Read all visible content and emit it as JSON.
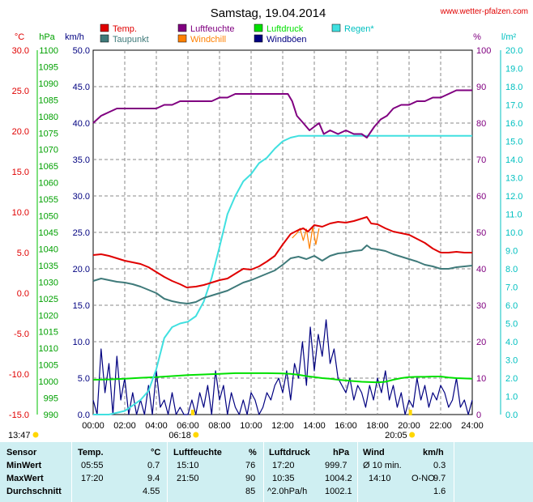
{
  "header": {
    "title": "Samstag, 19.04.2014",
    "site": "www.wetter-pfalzen.com"
  },
  "legend": [
    {
      "name": "Temp.",
      "color": "#e00000"
    },
    {
      "name": "Taupunkt",
      "color": "#3f7a7a"
    },
    {
      "name": "Luftfeuchte",
      "color": "#800080"
    },
    {
      "name": "Windchill",
      "color": "#ff8000"
    },
    {
      "name": "Luftdruck",
      "color": "#00e000"
    },
    {
      "name": "Windböen",
      "color": "#000080"
    },
    {
      "name": "Regen*",
      "color": "#40e0e0"
    }
  ],
  "axes": {
    "temp": {
      "unit": "°C",
      "color": "#e00000",
      "labels": [
        "30.0",
        "25.0",
        "20.0",
        "15.0",
        "10.0",
        "5.0",
        "0.0",
        "-5.0",
        "-10.0",
        "-15.0"
      ]
    },
    "pressure": {
      "unit": "hPa",
      "color": "#00a000",
      "labels": [
        "1100",
        "1095",
        "1090",
        "1085",
        "1080",
        "1075",
        "1070",
        "1065",
        "1060",
        "1055",
        "1050",
        "1045",
        "1040",
        "1035",
        "1030",
        "1025",
        "1020",
        "1015",
        "1010",
        "1005",
        "1000",
        "995",
        "990"
      ]
    },
    "wind": {
      "unit": "km/h",
      "color": "#000080",
      "labels": [
        "50.0",
        "45.0",
        "40.0",
        "35.0",
        "30.0",
        "25.0",
        "20.0",
        "15.0",
        "10.0",
        "5.0",
        "0.0"
      ]
    },
    "humidity": {
      "unit": "%",
      "color": "#800080",
      "labels": [
        "100",
        "90",
        "80",
        "70",
        "60",
        "50",
        "40",
        "30",
        "20",
        "10",
        "0"
      ]
    },
    "rain": {
      "unit": "l/m²",
      "color": "#00c0c0",
      "labels": [
        "20.0",
        "19.0",
        "18.0",
        "17.0",
        "16.0",
        "15.0",
        "14.0",
        "13.0",
        "12.0",
        "11.0",
        "10.0",
        "9.0",
        "8.0",
        "7.0",
        "6.0",
        "5.0",
        "4.0",
        "3.0",
        "2.0",
        "1.0",
        "0.0"
      ]
    },
    "x_labels": [
      "00:00",
      "02:00",
      "04:00",
      "06:00",
      "08:00",
      "10:00",
      "12:00",
      "14:00",
      "16:00",
      "18:00",
      "20:00",
      "22:00",
      "24:00"
    ]
  },
  "sun": {
    "moonrise": "13:47",
    "sunrise": "06:18",
    "sunset": "20:05"
  },
  "chart_data": {
    "type": "line",
    "x_unit": "hours",
    "x_range": [
      0,
      24
    ],
    "grid": true,
    "series": [
      {
        "name": "Temp.",
        "axis": "temp",
        "x": [
          0,
          0.5,
          1,
          1.5,
          2,
          2.5,
          3,
          3.5,
          4,
          4.5,
          5,
          5.5,
          5.92,
          6.5,
          7,
          7.5,
          8,
          8.5,
          9,
          9.5,
          10,
          10.5,
          11,
          11.5,
          12,
          12.5,
          13,
          13.3,
          13.6,
          14,
          14.5,
          15,
          15.5,
          16,
          16.5,
          17,
          17.33,
          17.6,
          18,
          18.5,
          19,
          19.5,
          20,
          20.5,
          21,
          21.5,
          22,
          22.5,
          23,
          23.5,
          24
        ],
        "y": [
          4.7,
          4.8,
          4.6,
          4.3,
          4.0,
          3.8,
          3.6,
          3.2,
          2.6,
          2.0,
          1.5,
          1.1,
          0.7,
          0.8,
          1.0,
          1.3,
          1.6,
          1.8,
          2.4,
          3.0,
          2.9,
          3.3,
          3.9,
          4.6,
          6.0,
          7.3,
          7.8,
          8.0,
          7.6,
          8.4,
          8.2,
          8.6,
          8.8,
          8.7,
          8.9,
          9.2,
          9.4,
          8.6,
          8.5,
          8.0,
          7.6,
          7.4,
          7.2,
          6.7,
          6.2,
          5.5,
          5.0,
          5.0,
          5.1,
          5.0,
          5.0
        ]
      },
      {
        "name": "Taupunkt",
        "axis": "temp",
        "x": [
          0,
          0.5,
          1,
          1.5,
          2,
          2.5,
          3,
          3.5,
          4,
          4.5,
          5,
          5.5,
          6,
          6.5,
          7,
          7.5,
          8,
          8.5,
          9,
          9.5,
          10,
          10.5,
          11,
          11.5,
          12,
          12.5,
          13,
          13.5,
          14,
          14.5,
          15,
          15.5,
          16,
          16.5,
          17,
          17.33,
          17.6,
          18,
          18.5,
          19,
          19.5,
          20,
          20.5,
          21,
          21.5,
          22,
          22.5,
          23,
          23.5,
          24
        ],
        "y": [
          1.5,
          1.8,
          1.6,
          1.4,
          1.3,
          1.1,
          0.8,
          0.4,
          0.0,
          -0.7,
          -1.0,
          -1.2,
          -1.3,
          -1.1,
          -0.6,
          -0.3,
          0.0,
          0.3,
          0.8,
          1.3,
          1.6,
          2.0,
          2.4,
          2.8,
          3.5,
          4.3,
          4.5,
          4.2,
          4.6,
          4.0,
          4.6,
          4.9,
          5.0,
          5.2,
          5.3,
          5.9,
          5.5,
          5.4,
          5.2,
          4.8,
          4.5,
          4.2,
          3.9,
          3.5,
          3.3,
          3.0,
          3.0,
          3.2,
          3.3,
          3.4
        ]
      },
      {
        "name": "Windchill",
        "axis": "temp",
        "x": [
          12.6,
          12.9,
          13.1,
          13.3,
          13.5,
          13.7,
          13.9,
          14.1,
          14.3
        ],
        "y": [
          6.8,
          7.4,
          8.0,
          6.5,
          7.9,
          5.5,
          8.2,
          6.0,
          8.0
        ]
      },
      {
        "name": "Luftfeuchte",
        "axis": "humidity",
        "x": [
          0,
          0.5,
          1,
          1.5,
          2,
          2.5,
          3,
          3.5,
          4,
          4.5,
          5,
          5.5,
          6,
          6.5,
          7,
          7.5,
          8,
          8.5,
          9,
          9.5,
          10,
          10.5,
          11,
          11.5,
          12,
          12.33,
          12.6,
          12.9,
          13.3,
          13.7,
          14,
          14.3,
          14.6,
          15,
          15.5,
          16,
          16.5,
          17,
          17.33,
          17.8,
          18.2,
          18.6,
          19,
          19.5,
          20,
          20.5,
          21,
          21.5,
          22,
          22.5,
          23,
          23.5,
          24
        ],
        "y": [
          80,
          82,
          83,
          84,
          84,
          84,
          84,
          84,
          84,
          85,
          85,
          86,
          86,
          86,
          86,
          86,
          87,
          87,
          88,
          88,
          88,
          88,
          88,
          88,
          88,
          88,
          86,
          82,
          80,
          78,
          79,
          80,
          77,
          78,
          77,
          78,
          77,
          77,
          76,
          79,
          81,
          82,
          84,
          85,
          85,
          86,
          86,
          87,
          87,
          88,
          89,
          89,
          89
        ]
      },
      {
        "name": "Luftdruck",
        "axis": "pressure",
        "x": [
          0,
          1,
          2,
          3,
          4,
          5,
          6,
          7,
          8,
          9,
          10,
          11,
          12,
          12.5,
          13,
          13.5,
          14,
          14.5,
          15,
          15.5,
          16,
          16.5,
          17,
          17.5,
          18,
          18.5,
          19,
          19.5,
          20,
          20.5,
          21,
          21.5,
          22,
          22.5,
          23,
          23.5,
          24
        ],
        "y": [
          1000.5,
          1000.6,
          1000.8,
          1001.1,
          1001.3,
          1001.6,
          1001.9,
          1002.1,
          1002.3,
          1002.5,
          1002.5,
          1002.5,
          1002.4,
          1002.3,
          1002.0,
          1001.6,
          1001.3,
          1001.0,
          1000.8,
          1000.5,
          1000.3,
          1000.1,
          999.9,
          999.8,
          999.7,
          999.9,
          1000.5,
          1001.0,
          1001.3,
          1001.4,
          1001.4,
          1001.5,
          1001.5,
          1001.2,
          1001.0,
          1000.9,
          1000.8
        ]
      },
      {
        "name": "Regen*",
        "axis": "rain",
        "x": [
          0,
          1,
          2,
          2.5,
          3,
          3.5,
          4,
          4.5,
          5,
          5.5,
          6,
          6.5,
          7,
          7.5,
          8,
          8.5,
          9,
          9.5,
          10,
          10.5,
          11,
          11.5,
          12,
          12.5,
          13,
          13.5,
          14,
          14.5,
          15,
          16,
          17,
          18,
          19,
          20,
          21,
          22,
          23,
          24
        ],
        "y": [
          0,
          0,
          0.2,
          0.5,
          0.8,
          1.3,
          2.5,
          4.2,
          4.8,
          5.0,
          5.1,
          5.4,
          6.2,
          7.5,
          9.2,
          11.0,
          12.0,
          12.8,
          13.2,
          13.8,
          14.1,
          14.6,
          15.0,
          15.2,
          15.3,
          15.3,
          15.3,
          15.3,
          15.3,
          15.3,
          15.3,
          15.3,
          15.3,
          15.3,
          15.3,
          15.3,
          15.3,
          15.3
        ]
      },
      {
        "name": "Windböen",
        "axis": "wind",
        "x": [
          0,
          0.25,
          0.5,
          0.75,
          1,
          1.25,
          1.5,
          1.75,
          2,
          2.25,
          2.5,
          2.75,
          3,
          3.25,
          3.5,
          3.75,
          4,
          4.25,
          4.5,
          4.75,
          5,
          5.25,
          5.5,
          5.75,
          6,
          6.25,
          6.5,
          6.75,
          7,
          7.25,
          7.5,
          7.75,
          8,
          8.25,
          8.5,
          8.75,
          9,
          9.25,
          9.5,
          9.75,
          10,
          10.25,
          10.5,
          10.75,
          11,
          11.25,
          11.5,
          11.75,
          12,
          12.25,
          12.5,
          12.75,
          13,
          13.25,
          13.5,
          13.75,
          14,
          14.25,
          14.5,
          14.75,
          15,
          15.25,
          15.5,
          15.75,
          16,
          16.25,
          16.5,
          16.75,
          17,
          17.25,
          17.5,
          17.75,
          18,
          18.25,
          18.5,
          18.75,
          19,
          19.25,
          19.5,
          19.75,
          20,
          20.25,
          20.5,
          20.75,
          21,
          21.25,
          21.5,
          21.75,
          22,
          22.25,
          22.5,
          22.75,
          23,
          23.25,
          23.5,
          23.75,
          24
        ],
        "y": [
          2,
          0,
          9,
          3,
          7,
          0,
          8,
          2,
          5,
          0,
          3,
          0,
          2,
          0,
          4,
          0,
          6,
          1,
          2,
          0,
          3,
          0,
          1,
          0,
          0,
          2,
          0,
          3,
          1,
          4,
          0,
          6,
          2,
          4,
          0,
          3,
          1,
          0,
          2,
          0,
          3,
          2,
          0,
          1,
          3,
          2,
          4,
          5,
          3,
          6,
          2,
          7,
          5,
          10,
          4,
          12,
          6,
          11,
          8,
          13,
          7,
          9,
          5,
          4,
          3,
          5,
          2,
          4,
          3,
          1,
          4,
          2,
          5,
          3,
          6,
          2,
          4,
          1,
          3,
          0,
          2,
          1,
          5,
          2,
          4,
          1,
          3,
          2,
          4,
          3,
          1,
          2,
          5,
          1,
          2,
          0,
          2
        ]
      }
    ]
  },
  "stats": {
    "headers": {
      "sensor": "Sensor",
      "temp": "Temp.",
      "temp_unit": "°C",
      "hum": "Luftfeuchte",
      "hum_unit": "%",
      "press": "Luftdruck",
      "press_unit": "hPa",
      "wind": "Wind",
      "wind_unit": "km/h"
    },
    "rows": [
      {
        "label": "MinWert",
        "t_time": "05:55",
        "t_val": "0.7",
        "h_time": "15:10",
        "h_val": "76",
        "p_time": "17:20",
        "p_val": "999.7",
        "w_time": "Ø 10 min.",
        "w_val": "0.3"
      },
      {
        "label": "MaxWert",
        "t_time": "17:20",
        "t_val": "9.4",
        "h_time": "21:50",
        "h_val": "90",
        "p_time": "10:35",
        "p_val": "1004.2",
        "w_time": "14:10",
        "w_dir": "O-NO",
        "w_val": "9.7"
      },
      {
        "label": "Durchschnitt",
        "t_time": "",
        "t_val": "4.55",
        "h_time": "",
        "h_val": "85",
        "p_time": "^2.0hPa/h",
        "p_val": "1002.1",
        "w_time": "",
        "w_val": "1.6"
      }
    ]
  }
}
